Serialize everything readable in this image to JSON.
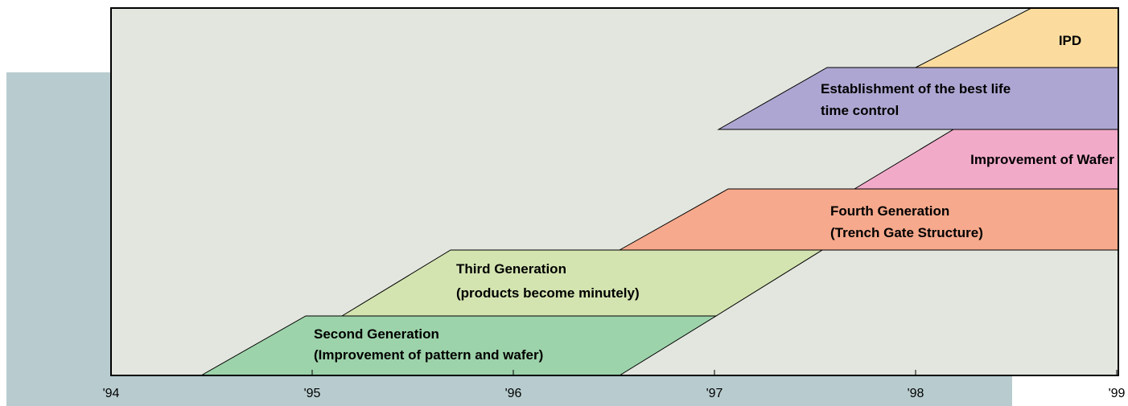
{
  "axis": {
    "ticks": [
      "'94",
      "'95",
      "'96",
      "'97",
      "'98",
      "'99"
    ]
  },
  "phases": [
    {
      "lines": [
        "Second Generation",
        "(Improvement of pattern and wafer)"
      ]
    },
    {
      "lines": [
        "Third Generation",
        "(products become minutely)"
      ]
    },
    {
      "lines": [
        "Fourth Generation",
        "(Trench Gate Structure)"
      ]
    },
    {
      "lines": [
        "Improvement of Wafer"
      ]
    },
    {
      "lines": [
        "Establishment of the best life",
        "time control"
      ]
    },
    {
      "lines": [
        "IPD"
      ]
    }
  ]
}
